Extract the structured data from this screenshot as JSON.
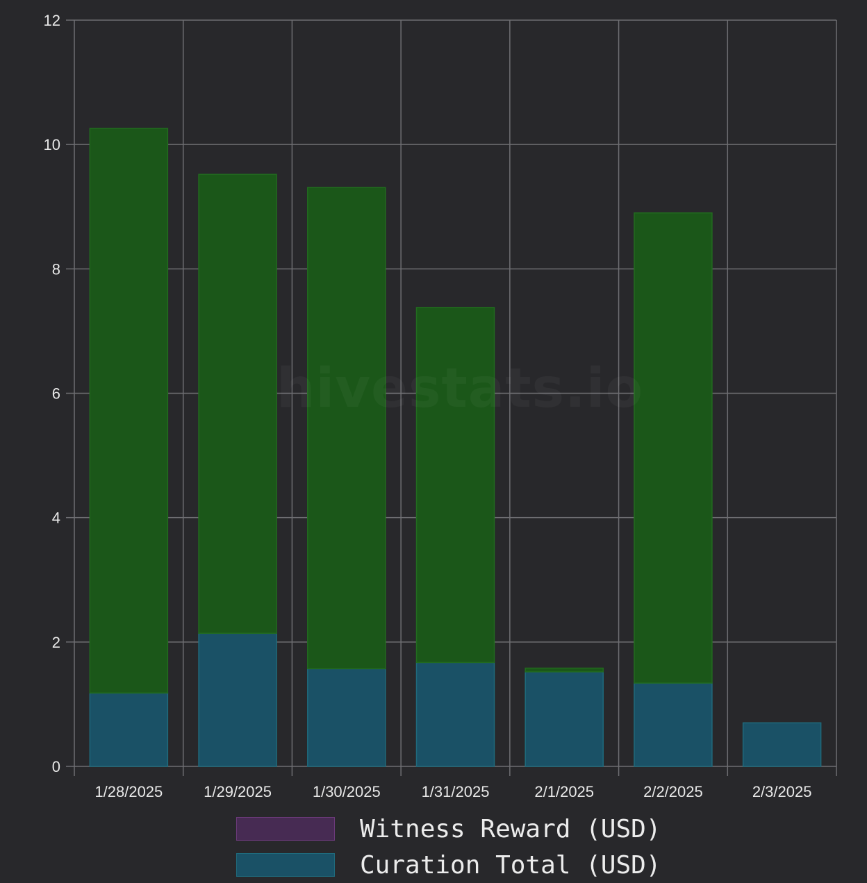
{
  "watermark": "hivestats.io",
  "colors": {
    "background": "#28282b",
    "grid": "#6e6e72",
    "tick_text": "#e8e8e8",
    "witness_fill": "#472b53",
    "witness_border": "#6b3a7a",
    "curation_fill": "#1a5166",
    "curation_border": "#1f6a7c",
    "author_fill": "#1b5719",
    "author_border": "#226b1f"
  },
  "legend": [
    {
      "label": "Witness Reward (USD)",
      "swatch": "#472b53",
      "border": "#6b3a7a"
    },
    {
      "label": "Curation Total (USD)",
      "swatch": "#1a5166",
      "border": "#1f6a7c"
    }
  ],
  "chart_data": {
    "type": "bar",
    "stacked": true,
    "categories": [
      "1/28/2025",
      "1/29/2025",
      "1/30/2025",
      "1/31/2025",
      "2/1/2025",
      "2/2/2025",
      "2/3/2025"
    ],
    "series": [
      {
        "name": "Witness Reward (USD)",
        "color": "#472b53",
        "values": [
          0,
          0,
          0,
          0,
          0,
          0,
          0
        ]
      },
      {
        "name": "Curation Total (USD)",
        "color": "#1a5166",
        "values": [
          1.18,
          2.14,
          1.57,
          1.67,
          1.52,
          1.34,
          0.7
        ]
      },
      {
        "color": "#1b5719",
        "values": [
          9.08,
          7.38,
          7.74,
          5.71,
          0.06,
          7.56,
          0
        ]
      }
    ],
    "yticks": [
      0,
      2,
      4,
      6,
      8,
      10,
      12
    ],
    "ylim": [
      0,
      12
    ],
    "grid": true,
    "legend_position": "bottom"
  }
}
